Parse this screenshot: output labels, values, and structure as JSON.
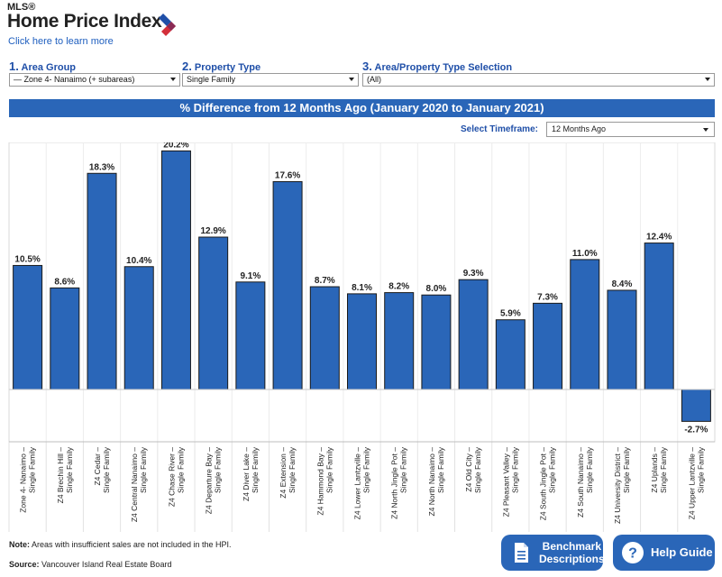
{
  "header": {
    "mls_label": "MLS®",
    "title": "Home Price Index",
    "learn_more": "Click here to learn more"
  },
  "selectors": {
    "area_group": {
      "number": "1.",
      "label": "Area Group",
      "value": "— Zone 4- Nanaimo (+ subareas)"
    },
    "property_type": {
      "number": "2.",
      "label": "Property Type",
      "value": "Single Family"
    },
    "area_property_selection": {
      "number": "3.",
      "label": "Area/Property Type Selection",
      "value": "(All)"
    }
  },
  "banner_title": "% Difference from 12 Months Ago (January 2020 to January 2021)",
  "timeframe": {
    "label": "Select Timeframe:",
    "value": "12 Months Ago"
  },
  "chart_data": {
    "type": "bar",
    "categories": [
      "Zone 4- Nanaimo – Single Family",
      "Z4 Brechin Hill – Single Family",
      "Z4 Cedar – Single Family",
      "Z4 Central Nanaimo – Single Family",
      "Z4 Chase River – Single Family",
      "Z4 Departure Bay – Single Family",
      "Z4 Diver Lake – Single Family",
      "Z4 Extension – Single Family",
      "Z4 Hammond Bay – Single Family",
      "Z4 Lower Lantzville – Single Family",
      "Z4 North Jingle Pot – Single Family",
      "Z4 North Nanaimo – Single Family",
      "Z4 Old City – Single Family",
      "Z4 Pleasant Valley – Single Family",
      "Z4 South Jingle Pot – Single Family",
      "Z4 South Nanaimo – Single Family",
      "Z4 University District – Single Family",
      "Z4 Uplands – Single Family",
      "Z4 Upper Lantzville – Single Family"
    ],
    "values": [
      10.5,
      8.6,
      18.3,
      10.4,
      20.2,
      12.9,
      9.1,
      17.6,
      8.7,
      8.1,
      8.2,
      8.0,
      9.3,
      5.9,
      7.3,
      11.0,
      8.4,
      12.4,
      -2.7
    ],
    "labels": [
      "10.5%",
      "8.6%",
      "18.3%",
      "10.4%",
      "20.2%",
      "12.9%",
      "9.1%",
      "17.6%",
      "8.7%",
      "8.1%",
      "8.2%",
      "8.0%",
      "9.3%",
      "5.9%",
      "7.3%",
      "11.0%",
      "8.4%",
      "12.4%",
      "-2.7%"
    ],
    "ylim": [
      -5,
      22
    ],
    "grid": false,
    "legend": "none",
    "bar_color": "#2a66b8"
  },
  "footer": {
    "note_label": "Note:",
    "note_text": "Areas with insufficient sales are not included in the HPI.",
    "source_label": "Source:",
    "source_text": "Vancouver Island Real Estate Board"
  },
  "buttons": {
    "benchmark_line1": "Benchmark",
    "benchmark_line2": "Descriptions",
    "help": "Help Guide"
  },
  "colors": {
    "accent": "#2a66b8",
    "link": "#1f5fbf",
    "logo_red": "#d32f3a",
    "logo_blue": "#1f4fa8"
  }
}
